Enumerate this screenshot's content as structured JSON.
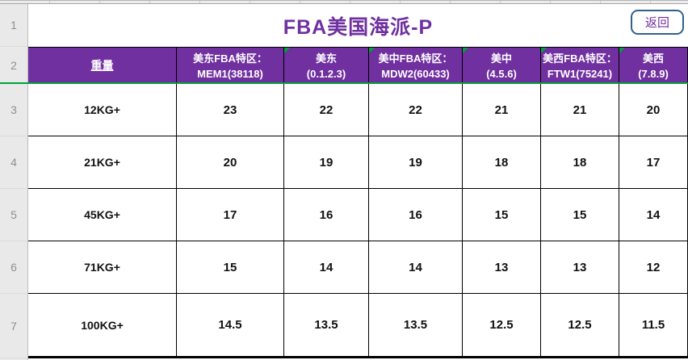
{
  "sheet": {
    "title": "FBA美国海派-P",
    "back_button_label": "返回",
    "row_numbers": [
      "1",
      "2",
      "3",
      "4",
      "5",
      "6",
      "7"
    ]
  },
  "colors": {
    "header_background_purple": "#7030A0",
    "title_text_purple": "#7030A0",
    "accent_green": "#00A33C",
    "back_button_border_blue": "#31608F"
  },
  "table": {
    "columns": [
      {
        "line1": "重量",
        "line2": ""
      },
      {
        "line1": "美东FBA特区：",
        "line2": "MEM1(38118)"
      },
      {
        "line1": "美东",
        "line2": "(0.1.2.3)"
      },
      {
        "line1": "美中FBA特区：",
        "line2": "MDW2(60433)"
      },
      {
        "line1": "美中",
        "line2": "(4.5.6)"
      },
      {
        "line1": "美西FBA特区：",
        "line2": "FTW1(75241)"
      },
      {
        "line1": "美西",
        "line2": "(7.8.9)"
      }
    ],
    "rows": [
      {
        "weight": "12KG+",
        "values": [
          "23",
          "22",
          "22",
          "21",
          "21",
          "20"
        ]
      },
      {
        "weight": "21KG+",
        "values": [
          "20",
          "19",
          "19",
          "18",
          "18",
          "17"
        ]
      },
      {
        "weight": "45KG+",
        "values": [
          "17",
          "16",
          "16",
          "15",
          "15",
          "14"
        ]
      },
      {
        "weight": "71KG+",
        "values": [
          "15",
          "14",
          "14",
          "13",
          "13",
          "12"
        ]
      },
      {
        "weight": "100KG+",
        "values": [
          "14.5",
          "13.5",
          "13.5",
          "12.5",
          "12.5",
          "11.5"
        ]
      }
    ]
  }
}
